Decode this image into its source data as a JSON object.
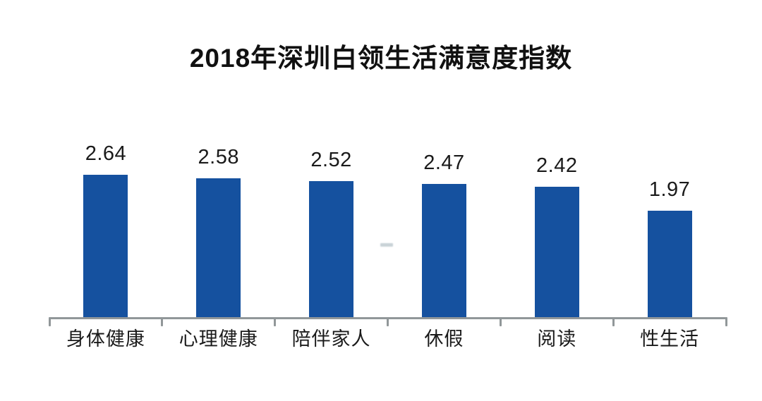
{
  "title": "2018年深圳白领生活满意度指数",
  "chart_data": {
    "type": "bar",
    "title": "2018年深圳白领生活满意度指数",
    "categories": [
      "身体健康",
      "心理健康",
      "陪伴家人",
      "休假",
      "阅读",
      "性生活"
    ],
    "values": [
      2.64,
      2.58,
      2.52,
      2.47,
      2.42,
      1.97
    ],
    "value_labels": [
      "2.64",
      "2.58",
      "2.52",
      "2.47",
      "2.42",
      "1.97"
    ],
    "xlabel": "",
    "ylabel": "",
    "ylim": [
      0,
      3
    ],
    "grid": false,
    "legend": "none",
    "value_labels_shown": true,
    "bar_color": "#15519f",
    "axis_color": "#919799",
    "text_color": "#1a1a1a",
    "background_color": "#ffffff"
  }
}
